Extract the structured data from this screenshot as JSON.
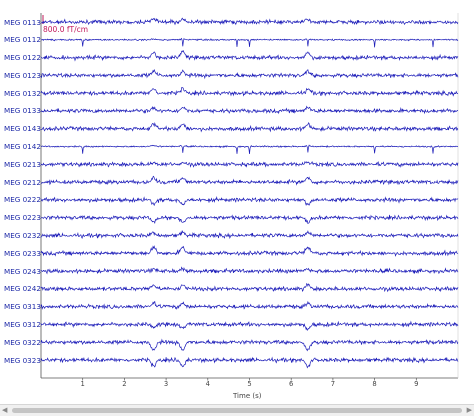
{
  "chart_data": {
    "type": "line",
    "xlabel": "Time (s)",
    "xlim": [
      0,
      10
    ],
    "xticks": [
      "1",
      "2",
      "3",
      "4",
      "5",
      "6",
      "7",
      "8",
      "9"
    ],
    "scale_label": "800.0 fT/cm",
    "trace_color": "#1a1ab8",
    "scale_color": "#c2185b",
    "channels": [
      "MEG 0113",
      "MEG 0112",
      "MEG 0122",
      "MEG 0123",
      "MEG 0132",
      "MEG 0133",
      "MEG 0143",
      "MEG 0142",
      "MEG 0213",
      "MEG 0212",
      "MEG 0222",
      "MEG 0223",
      "MEG 0232",
      "MEG 0233",
      "MEG 0243",
      "MEG 0242",
      "MEG 0313",
      "MEG 0312",
      "MEG 0322",
      "MEG 0323"
    ],
    "heartbeat_events_s": [
      2.7,
      3.4,
      6.4
    ],
    "spike_events_s": [
      1.0,
      3.4,
      4.7,
      5.0,
      6.4,
      8.0,
      9.4
    ]
  },
  "scrollbar": {
    "left_arrow": "◀",
    "right_arrow": "▶"
  }
}
